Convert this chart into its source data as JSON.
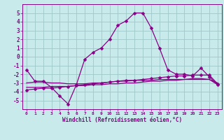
{
  "xlabel": "Windchill (Refroidissement éolien,°C)",
  "background_color": "#c8eaea",
  "grid_color": "#a0c8c8",
  "line_color": "#880088",
  "hours": [
    0,
    1,
    2,
    3,
    4,
    5,
    6,
    7,
    8,
    9,
    10,
    11,
    12,
    13,
    14,
    15,
    16,
    17,
    18,
    19,
    20,
    21,
    22,
    23
  ],
  "main_line": [
    -1.5,
    -2.8,
    -2.8,
    -3.5,
    -4.5,
    -5.4,
    -3.2,
    -0.3,
    0.5,
    1.0,
    2.0,
    3.6,
    4.1,
    5.0,
    5.0,
    3.3,
    1.0,
    -1.5,
    -2.0,
    -2.0,
    -2.2,
    -1.3,
    -2.3,
    -3.2
  ],
  "line2": [
    -3.0,
    -2.9,
    -2.9,
    -3.0,
    -3.0,
    -3.1,
    -3.1,
    -3.1,
    -3.0,
    -3.0,
    -2.9,
    -2.8,
    -2.8,
    -2.7,
    -2.7,
    -2.7,
    -2.6,
    -2.6,
    -2.6,
    -2.6,
    -2.5,
    -2.5,
    -2.6,
    -3.0
  ],
  "line3": [
    -3.5,
    -3.5,
    -3.5,
    -3.4,
    -3.4,
    -3.4,
    -3.3,
    -3.3,
    -3.2,
    -3.2,
    -3.1,
    -3.1,
    -3.0,
    -3.0,
    -2.9,
    -2.8,
    -2.8,
    -2.7,
    -2.7,
    -2.6,
    -2.6,
    -2.6,
    -2.6,
    -3.2
  ],
  "line4": [
    -3.8,
    -3.7,
    -3.6,
    -3.6,
    -3.5,
    -3.4,
    -3.3,
    -3.2,
    -3.1,
    -3.0,
    -2.9,
    -2.8,
    -2.7,
    -2.7,
    -2.6,
    -2.5,
    -2.4,
    -2.3,
    -2.2,
    -2.2,
    -2.1,
    -2.1,
    -2.1,
    -3.1
  ],
  "ylim": [
    -6,
    6
  ],
  "yticks": [
    -5,
    -4,
    -3,
    -2,
    -1,
    0,
    1,
    2,
    3,
    4,
    5
  ],
  "marker_size": 2.5,
  "line_width": 0.9
}
